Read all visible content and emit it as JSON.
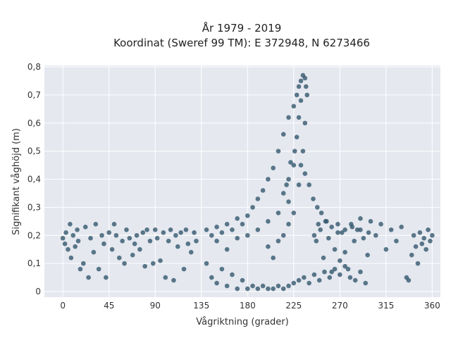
{
  "chart_data": {
    "type": "scatter",
    "title_line1": "År 1979 - 2019",
    "title_line2": "Koordinat (Sweref 99 TM): E 372948, N 6273466",
    "xlabel": "Vågriktning (grader)",
    "ylabel": "Signifikant våghöjd (m)",
    "xlim": [
      -18,
      368
    ],
    "ylim": [
      -0.02,
      0.805
    ],
    "x_ticks": [
      0,
      45,
      90,
      135,
      180,
      225,
      270,
      315,
      360
    ],
    "x_tick_labels": [
      "0",
      "45",
      "90",
      "135",
      "180",
      "225",
      "270",
      "315",
      "360"
    ],
    "y_ticks": [
      0,
      0.1,
      0.2,
      0.3,
      0.4,
      0.5,
      0.6,
      0.7,
      0.8
    ],
    "y_tick_labels": [
      "0",
      "0,1",
      "0,2",
      "0,3",
      "0,4",
      "0,5",
      "0,6",
      "0,7",
      "0,8"
    ],
    "grid": true,
    "marker_color": "#34586e",
    "plot_background": "#e5e8ef",
    "points": [
      [
        0,
        0.19
      ],
      [
        2,
        0.17
      ],
      [
        3,
        0.21
      ],
      [
        5,
        0.15
      ],
      [
        7,
        0.24
      ],
      [
        8,
        0.12
      ],
      [
        10,
        0.2
      ],
      [
        12,
        0.16
      ],
      [
        14,
        0.22
      ],
      [
        15,
        0.18
      ],
      [
        17,
        0.08
      ],
      [
        20,
        0.1
      ],
      [
        22,
        0.23
      ],
      [
        25,
        0.05
      ],
      [
        27,
        0.19
      ],
      [
        30,
        0.14
      ],
      [
        32,
        0.24
      ],
      [
        35,
        0.08
      ],
      [
        38,
        0.2
      ],
      [
        40,
        0.17
      ],
      [
        42,
        0.05
      ],
      [
        45,
        0.21
      ],
      [
        48,
        0.15
      ],
      [
        50,
        0.24
      ],
      [
        52,
        0.2
      ],
      [
        55,
        0.12
      ],
      [
        58,
        0.18
      ],
      [
        60,
        0.1
      ],
      [
        62,
        0.22
      ],
      [
        65,
        0.19
      ],
      [
        68,
        0.13
      ],
      [
        70,
        0.17
      ],
      [
        72,
        0.2
      ],
      [
        75,
        0.15
      ],
      [
        78,
        0.21
      ],
      [
        80,
        0.09
      ],
      [
        82,
        0.22
      ],
      [
        85,
        0.18
      ],
      [
        88,
        0.1
      ],
      [
        90,
        0.22
      ],
      [
        92,
        0.19
      ],
      [
        95,
        0.11
      ],
      [
        98,
        0.21
      ],
      [
        100,
        0.05
      ],
      [
        103,
        0.18
      ],
      [
        105,
        0.22
      ],
      [
        108,
        0.04
      ],
      [
        110,
        0.2
      ],
      [
        112,
        0.16
      ],
      [
        115,
        0.21
      ],
      [
        118,
        0.08
      ],
      [
        120,
        0.22
      ],
      [
        122,
        0.17
      ],
      [
        125,
        0.14
      ],
      [
        128,
        0.21
      ],
      [
        130,
        0.18
      ],
      [
        335,
        0.05
      ],
      [
        337,
        0.04
      ],
      [
        340,
        0.13
      ],
      [
        342,
        0.2
      ],
      [
        344,
        0.16
      ],
      [
        346,
        0.1
      ],
      [
        348,
        0.21
      ],
      [
        350,
        0.17
      ],
      [
        352,
        0.19
      ],
      [
        354,
        0.15
      ],
      [
        356,
        0.22
      ],
      [
        358,
        0.18
      ],
      [
        360,
        0.2
      ],
      [
        330,
        0.23
      ],
      [
        325,
        0.18
      ],
      [
        320,
        0.22
      ],
      [
        315,
        0.15
      ],
      [
        310,
        0.24
      ],
      [
        305,
        0.2
      ],
      [
        300,
        0.25
      ],
      [
        297,
        0.13
      ],
      [
        293,
        0.19
      ],
      [
        290,
        0.26
      ],
      [
        287,
        0.22
      ],
      [
        284,
        0.18
      ],
      [
        281,
        0.24
      ],
      [
        278,
        0.08
      ],
      [
        275,
        0.14
      ],
      [
        272,
        0.21
      ],
      [
        270,
        0.11
      ],
      [
        268,
        0.24
      ],
      [
        265,
        0.15
      ],
      [
        262,
        0.07
      ],
      [
        259,
        0.19
      ],
      [
        256,
        0.25
      ],
      [
        254,
        0.12
      ],
      [
        251,
        0.22
      ],
      [
        249,
        0.24
      ],
      [
        247,
        0.18
      ],
      [
        245,
        0.2
      ],
      [
        140,
        0.22
      ],
      [
        145,
        0.2
      ],
      [
        150,
        0.23
      ],
      [
        155,
        0.21
      ],
      [
        160,
        0.24
      ],
      [
        165,
        0.22
      ],
      [
        170,
        0.26
      ],
      [
        175,
        0.24
      ],
      [
        180,
        0.27
      ],
      [
        185,
        0.3
      ],
      [
        190,
        0.33
      ],
      [
        195,
        0.36
      ],
      [
        200,
        0.4
      ],
      [
        205,
        0.44
      ],
      [
        210,
        0.5
      ],
      [
        215,
        0.56
      ],
      [
        220,
        0.62
      ],
      [
        225,
        0.66
      ],
      [
        228,
        0.7
      ],
      [
        230,
        0.73
      ],
      [
        232,
        0.75
      ],
      [
        234,
        0.77
      ],
      [
        236,
        0.76
      ],
      [
        237,
        0.73
      ],
      [
        238,
        0.7
      ],
      [
        236,
        0.6
      ],
      [
        234,
        0.5
      ],
      [
        232,
        0.45
      ],
      [
        236,
        0.42
      ],
      [
        240,
        0.38
      ],
      [
        244,
        0.33
      ],
      [
        248,
        0.3
      ],
      [
        252,
        0.28
      ],
      [
        257,
        0.25
      ],
      [
        262,
        0.23
      ],
      [
        268,
        0.21
      ],
      [
        275,
        0.22
      ],
      [
        282,
        0.23
      ],
      [
        290,
        0.22
      ],
      [
        298,
        0.21
      ],
      [
        140,
        0.1
      ],
      [
        145,
        0.05
      ],
      [
        150,
        0.03
      ],
      [
        155,
        0.08
      ],
      [
        160,
        0.02
      ],
      [
        165,
        0.06
      ],
      [
        170,
        0.01
      ],
      [
        175,
        0.04
      ],
      [
        180,
        0.01
      ],
      [
        185,
        0.02
      ],
      [
        190,
        0.01
      ],
      [
        195,
        0.02
      ],
      [
        200,
        0.01
      ],
      [
        205,
        0.01
      ],
      [
        210,
        0.02
      ],
      [
        215,
        0.01
      ],
      [
        220,
        0.02
      ],
      [
        225,
        0.03
      ],
      [
        230,
        0.04
      ],
      [
        235,
        0.05
      ],
      [
        240,
        0.03
      ],
      [
        245,
        0.06
      ],
      [
        250,
        0.04
      ],
      [
        255,
        0.07
      ],
      [
        260,
        0.05
      ],
      [
        265,
        0.08
      ],
      [
        270,
        0.06
      ],
      [
        275,
        0.09
      ],
      [
        280,
        0.05
      ],
      [
        285,
        0.04
      ],
      [
        290,
        0.07
      ],
      [
        295,
        0.03
      ],
      [
        150,
        0.18
      ],
      [
        160,
        0.15
      ],
      [
        170,
        0.19
      ],
      [
        180,
        0.2
      ],
      [
        190,
        0.22
      ],
      [
        200,
        0.25
      ],
      [
        210,
        0.28
      ],
      [
        220,
        0.32
      ],
      [
        200,
        0.16
      ],
      [
        205,
        0.12
      ],
      [
        210,
        0.18
      ],
      [
        215,
        0.2
      ],
      [
        220,
        0.24
      ],
      [
        225,
        0.28
      ],
      [
        215,
        0.35
      ],
      [
        220,
        0.4
      ],
      [
        225,
        0.45
      ],
      [
        230,
        0.38
      ],
      [
        228,
        0.55
      ],
      [
        230,
        0.62
      ],
      [
        232,
        0.68
      ],
      [
        226,
        0.5
      ],
      [
        222,
        0.46
      ],
      [
        218,
        0.38
      ]
    ]
  }
}
